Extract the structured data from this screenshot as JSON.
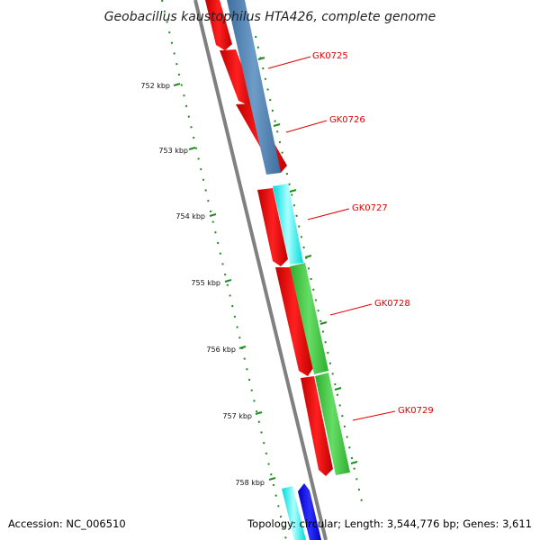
{
  "title": "Geobacillus kaustophilus HTA426, complete genome",
  "ruler": {
    "tick_labels": [
      "752 kbp",
      "753 kbp",
      "754 kbp",
      "755 kbp",
      "756 kbp",
      "757 kbp",
      "758 kbp"
    ]
  },
  "genes": [
    {
      "label": "GK0725"
    },
    {
      "label": "GK0726"
    },
    {
      "label": "GK0727"
    },
    {
      "label": "GK0728"
    },
    {
      "label": "GK0729"
    }
  ],
  "footer": {
    "accession": "Accession: NC_006510",
    "stats": "Topology: circular; Length: 3,544,776 bp; Genes: 3,611"
  },
  "colors": {
    "red_gene": "#ff0000",
    "steelblue_gene": "#4f82b5",
    "cyan_gene": "#00ffff",
    "green_gene": "#3fcc3f",
    "blue_gene": "#0000ff",
    "backbone": "#808080",
    "ticks": "#228b22",
    "label_red": "#e00000"
  }
}
